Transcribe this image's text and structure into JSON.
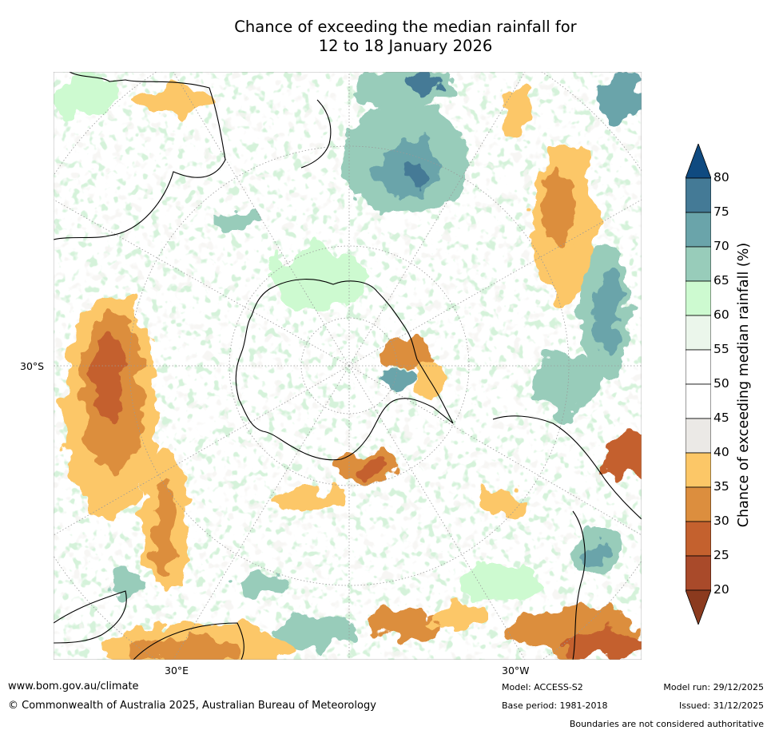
{
  "title": {
    "line1": "Chance of exceeding the median rainfall for",
    "line2": "12 to 18 January 2026"
  },
  "map": {
    "projection": "south-polar stereographic",
    "labels": {
      "lat_left": "30°S",
      "lon_bottom_left": "30°E",
      "lon_bottom_right": "30°W"
    }
  },
  "colorbar": {
    "title": "Chance of exceeding median rainfall (%)",
    "ticks": [
      "20",
      "25",
      "30",
      "35",
      "40",
      "45",
      "50",
      "55",
      "60",
      "65",
      "70",
      "75",
      "80"
    ],
    "colors": [
      "#8b3a1e",
      "#a94a2a",
      "#c4612e",
      "#dc8e3e",
      "#fcc767",
      "#ebe9e6",
      "#ffffff",
      "#ffffff",
      "#ebf6eb",
      "#cdfad0",
      "#98ccba",
      "#6aa4aa",
      "#447a96",
      "#0f4a80"
    ],
    "extend": "both"
  },
  "footer": {
    "url": "www.bom.gov.au/climate",
    "copyright": "© Commonwealth of Australia 2025, Australian Bureau of Meteorology",
    "model": "Model: ACCESS-S2",
    "base_period": "Base period: 1981-2018",
    "model_run": "Model run: 29/12/2025",
    "issued": "Issued: 31/12/2025",
    "disclaimer": "Boundaries are not considered authoritative"
  }
}
